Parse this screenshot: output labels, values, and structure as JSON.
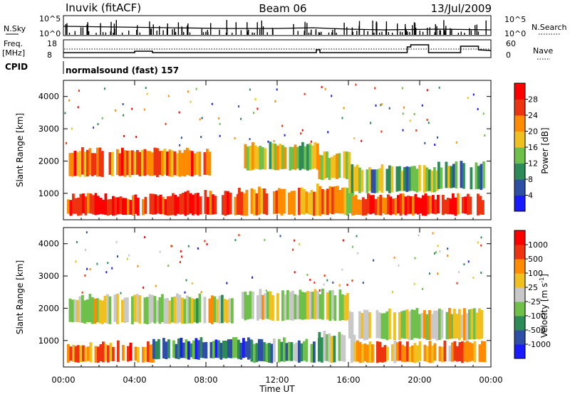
{
  "header": {
    "station": "Inuvik (fitACF)",
    "beam": "Beam 06",
    "date": "13/Jul/2009"
  },
  "top_panels": {
    "nsky_label": "N.Sky",
    "nsky_ticks": [
      "10^5",
      "10^0"
    ],
    "nsearch_label": "N.Search",
    "nsearch_ticks": [
      "10^5",
      "10^0"
    ],
    "freq_label": "Freq.",
    "freq_unit": "[MHz]",
    "freq_ticks": [
      "18",
      "8"
    ],
    "nave_label": "Nave",
    "nave_ticks": [
      "60",
      "0"
    ],
    "cpid_label": "CPID",
    "cpid_value": "normalsound (fast) 157"
  },
  "chart_data": [
    {
      "type": "heatmap",
      "name": "power-panel",
      "ylabel": "Slant Range [km]",
      "ylim": [
        180,
        4500
      ],
      "yticks": [
        1000,
        2000,
        3000,
        4000
      ],
      "xlim": [
        0,
        24
      ],
      "colorbar": {
        "label": "Power [dB]",
        "ticks": [
          "4",
          "8",
          "12",
          "16",
          "20",
          "24",
          "28"
        ],
        "colors": [
          "#1a1aff",
          "#2e4fa3",
          "#2e8b57",
          "#6fc04a",
          "#f0c020",
          "#ff8c00",
          "#ee3311",
          "#ff0000"
        ]
      },
      "bands": [
        {
          "t0": 0.2,
          "t1": 5.8,
          "r0": 300,
          "r1": 900,
          "level": 0.9
        },
        {
          "t0": 5.8,
          "t1": 9.8,
          "r0": 300,
          "r1": 1000,
          "level": 0.88
        },
        {
          "t0": 9.8,
          "t1": 14.2,
          "r0": 300,
          "r1": 1100,
          "level": 0.7
        },
        {
          "t0": 14.2,
          "t1": 16.2,
          "r0": 300,
          "r1": 1200,
          "level": 0.62
        },
        {
          "t0": 16.2,
          "t1": 23.6,
          "r0": 300,
          "r1": 900,
          "level": 0.85
        },
        {
          "t0": 0.3,
          "t1": 8.2,
          "r0": 1500,
          "r1": 2350,
          "level": 0.72
        },
        {
          "t0": 10.0,
          "t1": 14.3,
          "r0": 1700,
          "r1": 2500,
          "level": 0.5
        },
        {
          "t0": 14.3,
          "t1": 16.0,
          "r0": 1400,
          "r1": 2200,
          "level": 0.55
        },
        {
          "t0": 16.0,
          "t1": 21.0,
          "r0": 1000,
          "r1": 1800,
          "level": 0.4
        },
        {
          "t0": 21.0,
          "t1": 23.6,
          "r0": 1100,
          "r1": 1900,
          "level": 0.35
        }
      ]
    },
    {
      "type": "heatmap",
      "name": "velocity-panel",
      "ylabel": "Slant Range [km]",
      "ylim": [
        180,
        4500
      ],
      "yticks": [
        1000,
        2000,
        3000,
        4000
      ],
      "xlim": [
        0,
        24
      ],
      "xlabel": "Time UT",
      "xticks": [
        "00:00",
        "04:00",
        "08:00",
        "12:00",
        "16:00",
        "20:00",
        "00:00"
      ],
      "colorbar": {
        "label": "Velocity [m s",
        "label_sup": "-1",
        "label_end": "]",
        "ticks": [
          "1000",
          "500",
          "100",
          "25",
          "-25",
          "-100",
          "-500",
          "-1000"
        ],
        "colors": [
          "#1a1aff",
          "#2e4fa3",
          "#2e8b57",
          "#6fc04a",
          "#c8c8c8",
          "#f0c020",
          "#ff8c00",
          "#ee3311",
          "#ff0000"
        ]
      },
      "bands": [
        {
          "t0": 0.2,
          "t1": 5.0,
          "r0": 300,
          "r1": 900,
          "level": 0.72
        },
        {
          "t0": 5.0,
          "t1": 10.5,
          "r0": 400,
          "r1": 1000,
          "level": 0.22
        },
        {
          "t0": 10.5,
          "t1": 14.3,
          "r0": 300,
          "r1": 1000,
          "level": 0.3
        },
        {
          "t0": 14.3,
          "t1": 16.3,
          "r0": 300,
          "r1": 1200,
          "level": 0.4
        },
        {
          "t0": 16.3,
          "t1": 23.6,
          "r0": 300,
          "r1": 900,
          "level": 0.7
        },
        {
          "t0": 0.3,
          "t1": 9.5,
          "r0": 1500,
          "r1": 2350,
          "level": 0.5
        },
        {
          "t0": 10.0,
          "t1": 16.0,
          "r0": 1600,
          "r1": 2500,
          "level": 0.5
        },
        {
          "t0": 16.0,
          "t1": 23.5,
          "r0": 1000,
          "r1": 1900,
          "level": 0.52
        }
      ]
    }
  ]
}
